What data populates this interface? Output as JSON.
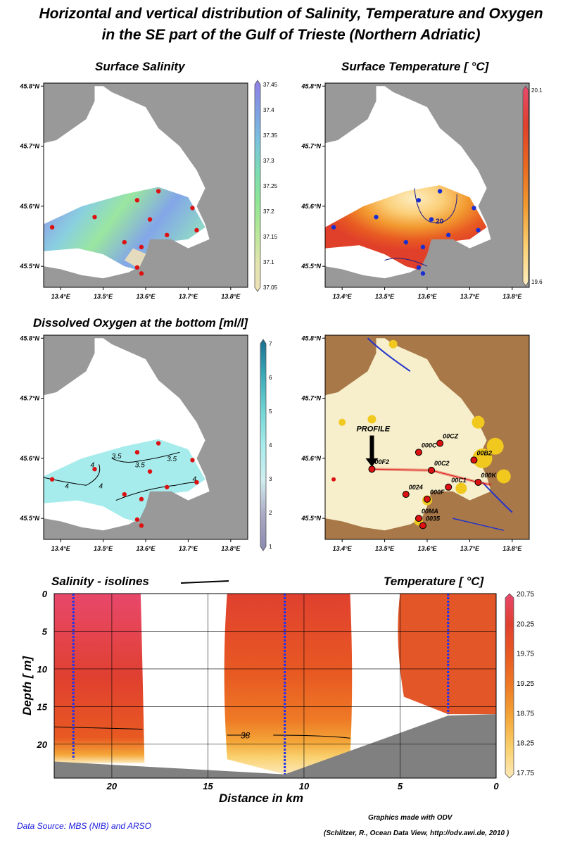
{
  "title_line1": "Horizontal and vertical distribution of Salinity, Temperature and Oxygen",
  "title_line2": "in the SE part of the Gulf of Trieste (Northern Adriatic)",
  "footer": {
    "source": "Data Source: MBS (NIB) and ARSO",
    "made_with": "Graphics made with ODV",
    "citation": "(Schlitzer, R., Ocean Data View, http://odv.awi.de, 2010 )"
  },
  "watermark": "Ocean Data View",
  "chart_data": [
    {
      "type": "heatmap",
      "title": "Surface Salinity",
      "x_ticks": [
        "13.4°E",
        "13.5°E",
        "13.6°E",
        "13.7°E",
        "13.8°E"
      ],
      "y_ticks": [
        "45.8°N",
        "45.7°N",
        "45.6°N",
        "45.5°N"
      ],
      "colorbar": {
        "ticks": [
          "37.45",
          "37.4",
          "37.35",
          "37.3",
          "37.25",
          "37.2",
          "37.15",
          "37.1",
          "37.05"
        ],
        "colors": [
          "#8f7fe6",
          "#7e9fe2",
          "#79c2de",
          "#7bdcb5",
          "#8ee696",
          "#b6e897",
          "#e2e6ae",
          "#efe0b8"
        ]
      },
      "stations": [
        [
          13.38,
          45.565
        ],
        [
          13.48,
          45.582
        ],
        [
          13.58,
          45.61
        ],
        [
          13.63,
          45.625
        ],
        [
          13.61,
          45.578
        ],
        [
          13.71,
          45.597
        ],
        [
          13.72,
          45.56
        ],
        [
          13.65,
          45.552
        ],
        [
          13.55,
          45.54
        ],
        [
          13.59,
          45.532
        ],
        [
          13.58,
          45.498
        ],
        [
          13.59,
          45.488
        ]
      ]
    },
    {
      "type": "heatmap",
      "title": "Surface Temperature [ °C]",
      "x_ticks": [
        "13.4°E",
        "13.5°E",
        "13.6°E",
        "13.7°E",
        "13.8°E"
      ],
      "y_ticks": [
        "45.8°N",
        "45.7°N",
        "45.6°N",
        "45.5°N"
      ],
      "colorbar": {
        "ticks": [
          "20.1",
          "19.6"
        ],
        "colors": [
          "#e84a6e",
          "#e2402a",
          "#ea6a20",
          "#f29a30",
          "#fbd072",
          "#fdeec0"
        ]
      },
      "contours": [
        "20",
        "20"
      ],
      "stations": [
        [
          13.38,
          45.565
        ],
        [
          13.48,
          45.582
        ],
        [
          13.58,
          45.61
        ],
        [
          13.63,
          45.625
        ],
        [
          13.61,
          45.578
        ],
        [
          13.71,
          45.597
        ],
        [
          13.72,
          45.56
        ],
        [
          13.65,
          45.552
        ],
        [
          13.55,
          45.54
        ],
        [
          13.59,
          45.532
        ],
        [
          13.58,
          45.498
        ],
        [
          13.59,
          45.488
        ]
      ]
    },
    {
      "type": "heatmap",
      "title": "Dissolved Oxygen at the bottom [ml/l]",
      "x_ticks": [
        "13.4°E",
        "13.5°E",
        "13.6°E",
        "13.7°E",
        "13.8°E"
      ],
      "y_ticks": [
        "45.8°N",
        "45.7°N",
        "45.6°N",
        "45.5°N"
      ],
      "colorbar": {
        "ticks": [
          "7",
          "6",
          "5",
          "4",
          "3",
          "2",
          "1"
        ],
        "colors": [
          "#1a6f8f",
          "#3aa9b8",
          "#6fd3d3",
          "#a8ecec",
          "#cfeef0",
          "#aaa8c4",
          "#8a8ab0"
        ]
      },
      "contours": [
        "3.5",
        "3.5",
        "3.5",
        "4",
        "4",
        "4",
        "4"
      ],
      "stations": [
        [
          13.38,
          45.565
        ],
        [
          13.48,
          45.582
        ],
        [
          13.58,
          45.61
        ],
        [
          13.63,
          45.625
        ],
        [
          13.61,
          45.578
        ],
        [
          13.71,
          45.597
        ],
        [
          13.72,
          45.56
        ],
        [
          13.65,
          45.552
        ],
        [
          13.55,
          45.54
        ],
        [
          13.59,
          45.532
        ],
        [
          13.58,
          45.498
        ],
        [
          13.59,
          45.488
        ]
      ]
    },
    {
      "type": "map",
      "x_ticks": [
        "13.4°E",
        "13.5°E",
        "13.6°E",
        "13.7°E",
        "13.8°E"
      ],
      "y_ticks": [
        "45.8°N",
        "45.7°N",
        "45.6°N",
        "45.5°N"
      ],
      "profile_label": "PROFILE",
      "stations": [
        {
          "name": "00F2",
          "lon": 13.47,
          "lat": 45.582
        },
        {
          "name": "000C",
          "lon": 13.58,
          "lat": 45.61
        },
        {
          "name": "00CZ",
          "lon": 13.63,
          "lat": 45.625
        },
        {
          "name": "00C2",
          "lon": 13.61,
          "lat": 45.58
        },
        {
          "name": "00B2",
          "lon": 13.71,
          "lat": 45.597
        },
        {
          "name": "000K",
          "lon": 13.72,
          "lat": 45.56
        },
        {
          "name": "00C1",
          "lon": 13.65,
          "lat": 45.552
        },
        {
          "name": "000F",
          "lon": 13.6,
          "lat": 45.532
        },
        {
          "name": "0024",
          "lon": 13.55,
          "lat": 45.54
        },
        {
          "name": "00MA",
          "lon": 13.58,
          "lat": 45.5
        },
        {
          "name": "0035",
          "lon": 13.59,
          "lat": 45.488
        }
      ]
    },
    {
      "type": "heatmap",
      "title_left": "Salinity - isolines",
      "title_right": "Temperature [ °C]",
      "xlabel": "Distance in km",
      "ylabel": "Depth [ m]",
      "x_ticks": [
        20,
        15,
        10,
        5,
        0
      ],
      "y_ticks": [
        0,
        5,
        10,
        15,
        20
      ],
      "xlim": [
        23,
        0
      ],
      "ylim": [
        0,
        24.5
      ],
      "isoline_label": "38",
      "casts": [
        {
          "dist": 22,
          "bottom": 22
        },
        {
          "dist": 11,
          "bottom": 24
        },
        {
          "dist": 2.5,
          "bottom": 16
        }
      ],
      "colorbar": {
        "ticks": [
          "20.75",
          "20.25",
          "19.75",
          "19.25",
          "18.75",
          "18.25",
          "17.75"
        ],
        "colors": [
          "#e8486b",
          "#e0402f",
          "#e85a22",
          "#ee7a26",
          "#f4a638",
          "#f9cf6c",
          "#fde9b8"
        ]
      }
    }
  ]
}
